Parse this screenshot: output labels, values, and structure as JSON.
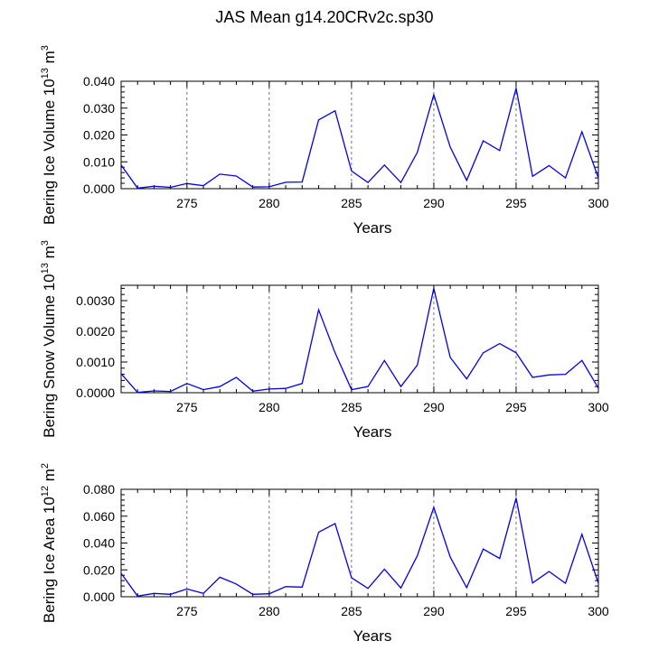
{
  "title": "JAS Mean g14.20CRv2c.sp30",
  "chart_data": [
    {
      "type": "line",
      "panel": "ice-volume",
      "ylabel": {
        "text": "Bering Ice Volume 10",
        "sup1": "13",
        "mid": " m",
        "sup2": "3"
      },
      "xlabel": "Years",
      "xlim": [
        271,
        300
      ],
      "ylim": [
        0,
        0.04
      ],
      "x_ticks": [
        275,
        280,
        285,
        290,
        295,
        300
      ],
      "x_tick_labels": [
        "275",
        "280",
        "285",
        "290",
        "295",
        "300"
      ],
      "y_ticks": [
        0,
        0.01,
        0.02,
        0.03,
        0.04
      ],
      "y_tick_labels": [
        "0.000",
        "0.010",
        "0.020",
        "0.030",
        "0.040"
      ],
      "grid_x": [
        275,
        280,
        285,
        290,
        295
      ],
      "line_color": "#0000ee",
      "x": [
        271,
        272,
        273,
        274,
        275,
        276,
        277,
        278,
        279,
        280,
        281,
        282,
        283,
        284,
        285,
        286,
        287,
        288,
        289,
        290,
        291,
        292,
        293,
        294,
        295,
        296,
        297,
        298,
        299,
        300
      ],
      "values": [
        0.0088,
        0.0002,
        0.0009,
        0.0005,
        0.0019,
        0.0011,
        0.0054,
        0.0047,
        0.0006,
        0.0007,
        0.0024,
        0.0025,
        0.0256,
        0.029,
        0.0066,
        0.0023,
        0.0088,
        0.0023,
        0.0135,
        0.035,
        0.0155,
        0.0031,
        0.0178,
        0.0142,
        0.0374,
        0.0046,
        0.0086,
        0.004,
        0.0212,
        0.004
      ]
    },
    {
      "type": "line",
      "panel": "snow-volume",
      "ylabel": {
        "text": "Bering Snow Volume 10",
        "sup1": "13",
        "mid": " m",
        "sup2": "3"
      },
      "xlabel": "Years",
      "xlim": [
        271,
        300
      ],
      "ylim": [
        0,
        0.0035
      ],
      "x_ticks": [
        275,
        280,
        285,
        290,
        295,
        300
      ],
      "x_tick_labels": [
        "275",
        "280",
        "285",
        "290",
        "295",
        "300"
      ],
      "y_ticks": [
        0,
        0.001,
        0.002,
        0.003
      ],
      "y_tick_labels": [
        "0.0000",
        "0.0010",
        "0.0020",
        "0.0030"
      ],
      "grid_x": [
        275,
        280,
        285,
        290,
        295
      ],
      "line_color": "#0000ee",
      "x": [
        271,
        272,
        273,
        274,
        275,
        276,
        277,
        278,
        279,
        280,
        281,
        282,
        283,
        284,
        285,
        286,
        287,
        288,
        289,
        290,
        291,
        292,
        293,
        294,
        295,
        296,
        297,
        298,
        299,
        300
      ],
      "values": [
        0.00062,
        1e-05,
        6e-05,
        4e-05,
        0.0003,
        0.0001,
        0.0002,
        0.0005,
        5e-05,
        0.00012,
        0.00014,
        0.0003,
        0.0027,
        0.0013,
        0.0001,
        0.0002,
        0.00105,
        0.0002,
        0.0009,
        0.0034,
        0.00115,
        0.00045,
        0.0013,
        0.0016,
        0.0013,
        0.0005,
        0.00058,
        0.0006,
        0.00105,
        0.00015
      ]
    },
    {
      "type": "line",
      "panel": "ice-area",
      "ylabel": {
        "text": "Bering Ice Area 10",
        "sup1": "12",
        "mid": " m",
        "sup2": "2"
      },
      "xlabel": "Years",
      "xlim": [
        271,
        300
      ],
      "ylim": [
        0,
        0.08
      ],
      "x_ticks": [
        275,
        280,
        285,
        290,
        295,
        300
      ],
      "x_tick_labels": [
        "275",
        "280",
        "285",
        "290",
        "295",
        "300"
      ],
      "y_ticks": [
        0,
        0.02,
        0.04,
        0.06,
        0.08
      ],
      "y_tick_labels": [
        "0.000",
        "0.020",
        "0.040",
        "0.060",
        "0.080"
      ],
      "grid_x": [
        275,
        280,
        285,
        290,
        295
      ],
      "line_color": "#0000ee",
      "x": [
        271,
        272,
        273,
        274,
        275,
        276,
        277,
        278,
        279,
        280,
        281,
        282,
        283,
        284,
        285,
        286,
        287,
        288,
        289,
        290,
        291,
        292,
        293,
        294,
        295,
        296,
        297,
        298,
        299,
        300
      ],
      "values": [
        0.0175,
        0.0005,
        0.0025,
        0.0018,
        0.0058,
        0.0025,
        0.0145,
        0.0095,
        0.0018,
        0.0022,
        0.0075,
        0.0072,
        0.048,
        0.0545,
        0.0142,
        0.0062,
        0.0205,
        0.0065,
        0.0305,
        0.0665,
        0.0295,
        0.0068,
        0.0355,
        0.0285,
        0.0735,
        0.0102,
        0.0188,
        0.01,
        0.0465,
        0.01
      ]
    }
  ]
}
